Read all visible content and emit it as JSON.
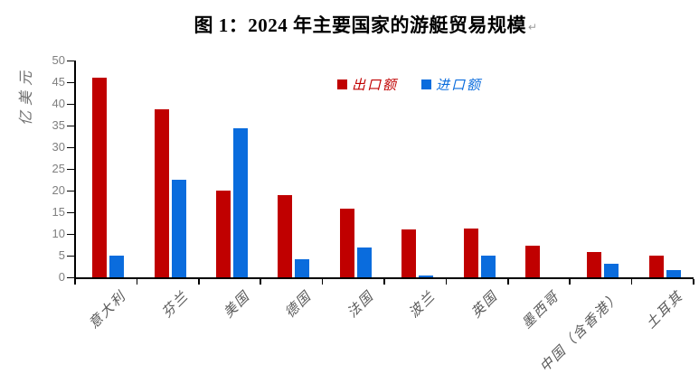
{
  "title": {
    "text": "图 1：2024 年主要国家的游艇贸易规模",
    "paragraph_mark": "↵"
  },
  "colors": {
    "export_series": "#c00000",
    "import_series": "#0a6cdd",
    "axis": "#000000",
    "tick_label": "#7f7f7f",
    "category_label": "#595959"
  },
  "chart_data": {
    "type": "bar",
    "title": "图 1：2024 年主要国家的游艇贸易规模",
    "ylabel": "亿美元",
    "xlabel": "",
    "ylim": [
      0,
      50
    ],
    "ytick_step": 5,
    "grid": false,
    "legend_position": "top-center",
    "categories": [
      "意大利",
      "芬兰",
      "美国",
      "德国",
      "法国",
      "波兰",
      "英国",
      "墨西哥",
      "中国（含香港）",
      "土耳其"
    ],
    "series": [
      {
        "name": "出口额",
        "color": "#c00000",
        "values": [
          46,
          38.7,
          20,
          19,
          15.8,
          11,
          11.2,
          7.2,
          5.8,
          4.9
        ]
      },
      {
        "name": "进口额",
        "color": "#0a6cdd",
        "values": [
          5,
          22.5,
          34.4,
          4.1,
          6.9,
          0.5,
          5.1,
          0,
          3.2,
          1.7
        ]
      }
    ]
  }
}
